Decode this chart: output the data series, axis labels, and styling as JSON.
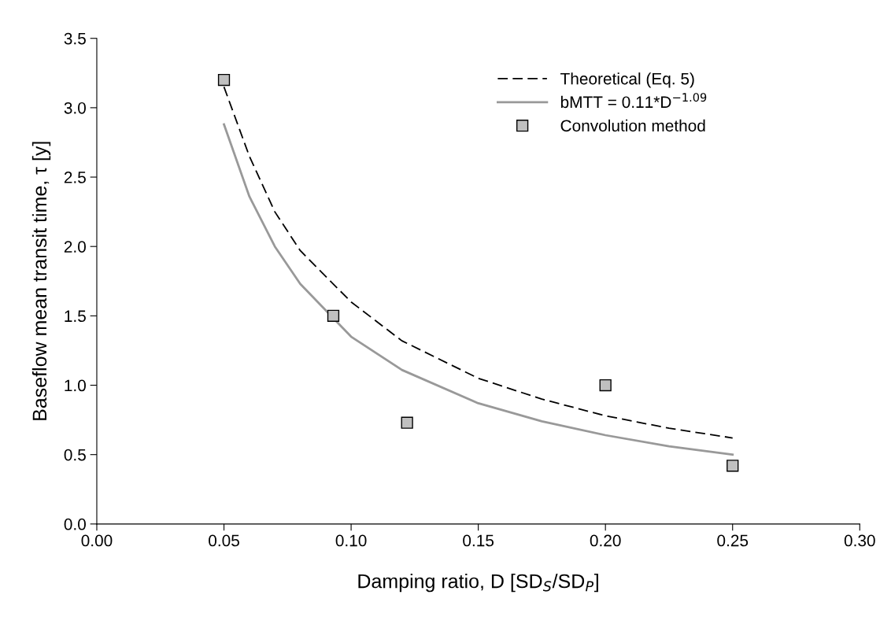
{
  "chart_data": {
    "type": "line",
    "xlabel": "Damping ratio, D [SD$_{S}$/SD$_{P}$]",
    "ylabel": "Baseflow mean transit time, τ [y]",
    "xlim": [
      0.0,
      0.3
    ],
    "ylim": [
      0.0,
      3.5
    ],
    "xticks": [
      {
        "value": 0.0,
        "label": "0.00"
      },
      {
        "value": 0.05,
        "label": "0.05"
      },
      {
        "value": 0.1,
        "label": "0.10"
      },
      {
        "value": 0.15,
        "label": "0.15"
      },
      {
        "value": 0.2,
        "label": "0.20"
      },
      {
        "value": 0.25,
        "label": "0.25"
      },
      {
        "value": 0.3,
        "label": "0.30"
      }
    ],
    "yticks": [
      {
        "value": 0.0,
        "label": "0.0"
      },
      {
        "value": 0.5,
        "label": "0.5"
      },
      {
        "value": 1.0,
        "label": "1.0"
      },
      {
        "value": 1.5,
        "label": "1.5"
      },
      {
        "value": 2.0,
        "label": "2.0"
      },
      {
        "value": 2.5,
        "label": "2.5"
      },
      {
        "value": 3.0,
        "label": "3.0"
      },
      {
        "value": 3.5,
        "label": "3.5"
      }
    ],
    "grid": false,
    "legend": "top right",
    "series": [
      {
        "name": "Theoretical (Eq. 5)",
        "color": "#000000",
        "line_style": "dashed",
        "marker": "none",
        "x": [
          0.05,
          0.06,
          0.07,
          0.08,
          0.1,
          0.12,
          0.15,
          0.175,
          0.2,
          0.225,
          0.25
        ],
        "values": [
          3.15,
          2.65,
          2.25,
          1.97,
          1.6,
          1.32,
          1.05,
          0.9,
          0.78,
          0.69,
          0.62
        ]
      },
      {
        "name": "bMTT = 0.11*D$^{−1.09}$",
        "color": "#999999",
        "line_style": "solid",
        "marker": "none",
        "x": [
          0.05,
          0.06,
          0.07,
          0.08,
          0.1,
          0.12,
          0.15,
          0.175,
          0.2,
          0.225,
          0.25
        ],
        "values": [
          2.88,
          2.36,
          2.0,
          1.73,
          1.35,
          1.11,
          0.87,
          0.74,
          0.64,
          0.56,
          0.5
        ]
      },
      {
        "type": "scatter",
        "name": "Convolution method",
        "color": "#c0c0c0",
        "marker": "square",
        "x": [
          0.05,
          0.093,
          0.122,
          0.2,
          0.25
        ],
        "values": [
          3.2,
          1.5,
          0.73,
          1.0,
          0.42
        ]
      }
    ]
  }
}
